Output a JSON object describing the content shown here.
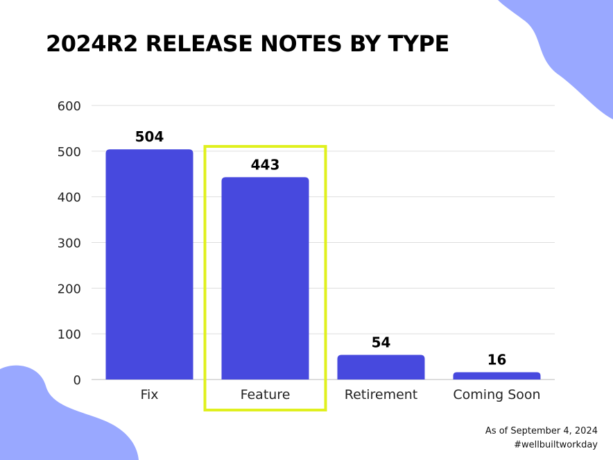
{
  "title": "2024R2 RELEASE NOTES BY TYPE",
  "footer": {
    "date_note": "As of September 4, 2024",
    "hashtag": "#wellbuiltworkday"
  },
  "colors": {
    "bar": "#4749DE",
    "highlight_box": "#E0F01E",
    "decor_blob": "#99A8FF",
    "grid": "#DDDDDD"
  },
  "chart_data": {
    "type": "bar",
    "categories": [
      "Fix",
      "Feature",
      "Retirement",
      "Coming Soon"
    ],
    "values": [
      504,
      443,
      54,
      16
    ],
    "data_labels": [
      "504",
      "443",
      "54",
      "16"
    ],
    "ylim": [
      0,
      600
    ],
    "yticks": [
      "0",
      "100",
      "200",
      "300",
      "400",
      "500",
      "600"
    ],
    "grid": true,
    "highlighted_category": "Feature"
  }
}
